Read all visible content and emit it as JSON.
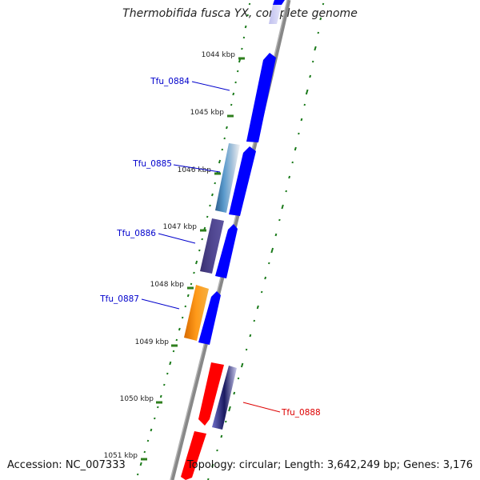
{
  "title": "Thermobifida fusca YX, complete genome",
  "footer": {
    "accession": "Accession: NC_007333",
    "summary": "Topology: circular; Length: 3,642,249 bp; Genes: 3,176"
  },
  "colors": {
    "forward_gene": "#0000ff",
    "label_forward": "#0000cc",
    "label_reverse": "#dd0000",
    "gc_dots": "#1a7a1a",
    "backbone": "#888888"
  },
  "ticks": [
    {
      "kbp": 1044,
      "label": "1044 kbp"
    },
    {
      "kbp": 1045,
      "label": "1045 kbp"
    },
    {
      "kbp": 1046,
      "label": "1046 kbp"
    },
    {
      "kbp": 1047,
      "label": "1047 kbp"
    },
    {
      "kbp": 1048,
      "label": "1048 kbp"
    },
    {
      "kbp": 1049,
      "label": "1049 kbp"
    },
    {
      "kbp": 1050,
      "label": "1050 kbp"
    },
    {
      "kbp": 1051,
      "label": "1051 kbp"
    }
  ],
  "gene_labels": [
    {
      "id": "Tfu_0884",
      "label": "Tfu_0884",
      "strand": "forward"
    },
    {
      "id": "Tfu_0885",
      "label": "Tfu_0885",
      "strand": "forward"
    },
    {
      "id": "Tfu_0886",
      "label": "Tfu_0886",
      "strand": "forward"
    },
    {
      "id": "Tfu_0887",
      "label": "Tfu_0887",
      "strand": "forward"
    },
    {
      "id": "Tfu_0888",
      "label": "Tfu_0888",
      "strand": "reverse"
    }
  ]
}
